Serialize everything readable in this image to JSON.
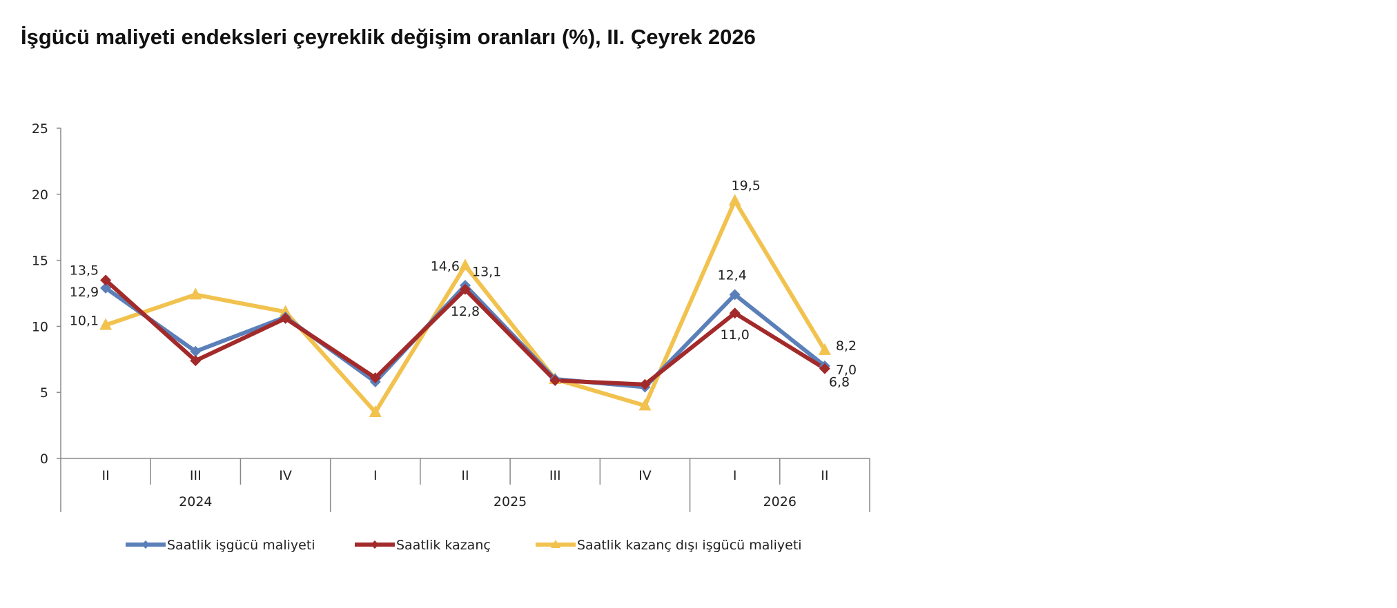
{
  "title": "İşgücü maliyeti endeksleri çeyreklik değişim oranları (%), II. Çeyrek 2026",
  "chart_data": {
    "type": "line",
    "categories": [
      "II",
      "III",
      "IV",
      "I",
      "II",
      "III",
      "IV",
      "I",
      "II"
    ],
    "groups": [
      {
        "label": "2024",
        "span": 3
      },
      {
        "label": "2025",
        "span": 4
      },
      {
        "label": "2026",
        "span": 2
      }
    ],
    "ylim": [
      0,
      25
    ],
    "yticks": [
      "0",
      "5",
      "10",
      "15",
      "20",
      "25"
    ],
    "grid": false,
    "legend_position": "bottom",
    "series": [
      {
        "name": "Saatlik işgücü maliyeti",
        "color": "#5b80b9",
        "marker": "diamond",
        "values": [
          12.9,
          8.1,
          10.7,
          5.8,
          13.1,
          6.0,
          5.4,
          12.4,
          7.0
        ],
        "labels": {
          "0": "12,9",
          "4": "13,1",
          "7": "12,4",
          "8": "7,0"
        }
      },
      {
        "name": "Saatlik kazanç",
        "color": "#a32a2a",
        "marker": "diamond",
        "values": [
          13.5,
          7.4,
          10.6,
          6.1,
          12.8,
          5.9,
          5.6,
          11.0,
          6.8
        ],
        "labels": {
          "0": "13,5",
          "4": "12,8",
          "7": "11,0",
          "8": "6,8"
        }
      },
      {
        "name": "Saatlik kazanç dışı işgücü maliyeti",
        "color": "#f2c24f",
        "marker": "triangle",
        "values": [
          10.1,
          12.4,
          11.1,
          3.5,
          14.6,
          6.0,
          4.0,
          19.5,
          8.2
        ],
        "labels": {
          "0": "10,1",
          "4": "14,6",
          "7": "19,5",
          "8": "8,2"
        }
      }
    ]
  }
}
